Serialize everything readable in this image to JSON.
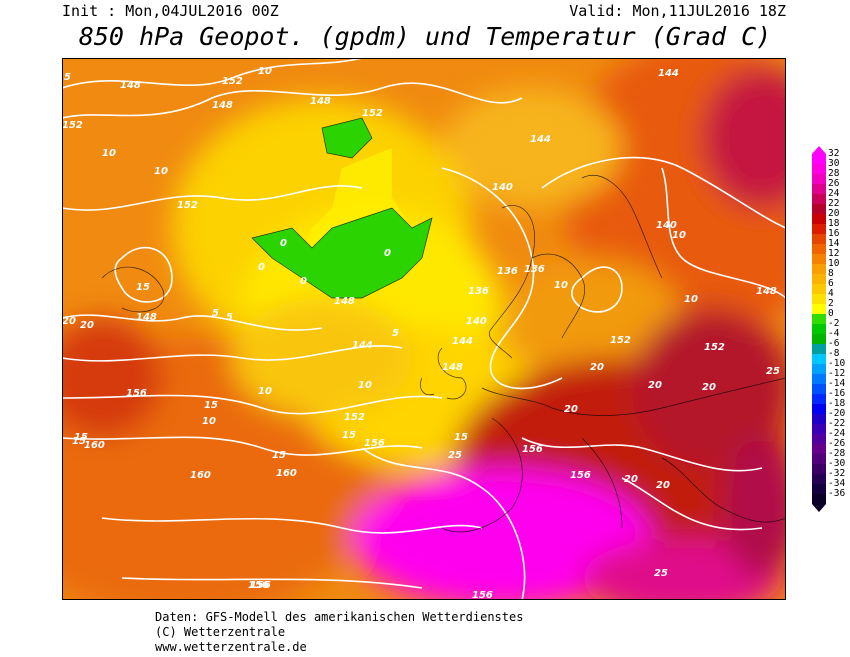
{
  "header": {
    "init": "Init : Mon,04JUL2016 00Z",
    "valid": "Valid: Mon,11JUL2016 18Z",
    "title": "850 hPa Geopot. (gpdm) und Temperatur (Grad C)"
  },
  "legend": {
    "ticks": [
      "32",
      "30",
      "28",
      "26",
      "24",
      "22",
      "20",
      "18",
      "16",
      "14",
      "12",
      "10",
      "8",
      "6",
      "4",
      "2",
      "0",
      "-2",
      "-4",
      "-6",
      "-8",
      "-10",
      "-12",
      "-14",
      "-16",
      "-18",
      "-20",
      "-22",
      "-24",
      "-26",
      "-28",
      "-30",
      "-32",
      "-34",
      "-36"
    ],
    "colors": [
      "#ff00ff",
      "#ff00e0",
      "#f000c0",
      "#e00090",
      "#c8005a",
      "#b40028",
      "#c80000",
      "#dc1e00",
      "#e64600",
      "#f06400",
      "#f58200",
      "#f8a000",
      "#fab400",
      "#fcc800",
      "#fde100",
      "#ffff00",
      "#32dc00",
      "#00c800",
      "#00b400",
      "#00a0a0",
      "#00c8ff",
      "#00a0ff",
      "#0078ff",
      "#0050ff",
      "#0028ff",
      "#0000f0",
      "#1e00c8",
      "#3c00b4",
      "#5000a0",
      "#64008c",
      "#500078",
      "#3c0064",
      "#280050",
      "#14003c",
      "#0a0028"
    ]
  },
  "map_labels": {
    "geopotential": [
      "148",
      "152",
      "148",
      "152",
      "148",
      "152",
      "140",
      "144",
      "136",
      "152",
      "148",
      "156",
      "160",
      "160",
      "156",
      "156",
      "152",
      "144",
      "148",
      "144",
      "140",
      "144",
      "148",
      "136",
      "136",
      "140",
      "152",
      "156",
      "156",
      "152",
      "148",
      "156",
      "160",
      "156"
    ],
    "temperature": [
      "5",
      "10",
      "10",
      "10",
      "15",
      "0",
      "0",
      "0",
      "0",
      "5",
      "10",
      "15",
      "20",
      "20",
      "15",
      "15",
      "15",
      "15",
      "20",
      "25",
      "20",
      "20",
      "20",
      "20",
      "20",
      "25",
      "25",
      "15",
      "10",
      "10",
      "10",
      "10",
      "5",
      "5",
      "10"
    ]
  },
  "footer": {
    "line1": "Daten: GFS-Modell des amerikanischen Wetterdienstes",
    "line2": "(C) Wetterzentrale",
    "line3": "www.wetterzentrale.de"
  }
}
